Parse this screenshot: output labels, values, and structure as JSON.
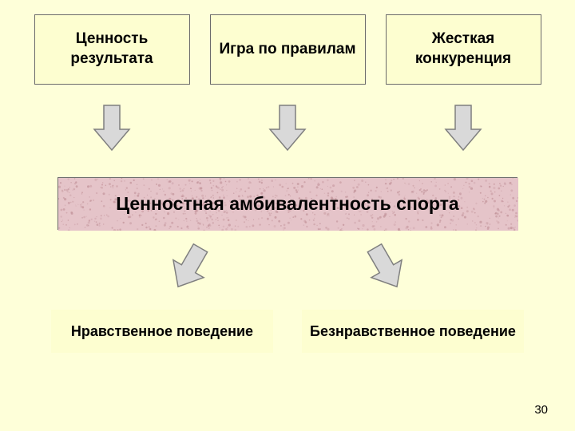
{
  "colors": {
    "slide_bg": "#feffd9",
    "box_bg": "#fdfed0",
    "box_border": "#6b6b6b",
    "center_bg": "#e5c4c9",
    "center_speckle": "#c09097",
    "arrow_fill": "#d9d9d9",
    "arrow_stroke": "#7f7f7f",
    "text": "#000000"
  },
  "fonts": {
    "top_box_size": 19,
    "center_size": 23,
    "bottom_box_size": 18,
    "page_num_size": 15,
    "weight": "bold"
  },
  "top_boxes": [
    {
      "label": "Ценность результата"
    },
    {
      "label": "Игра по правилам"
    },
    {
      "label": "Жесткая конкуренция"
    }
  ],
  "center": {
    "label": "Ценностная амбивалентность спорта"
  },
  "bottom_boxes": [
    {
      "label": "Нравственное поведение"
    },
    {
      "label": "Безнравственное поведение"
    }
  ],
  "page_number": "30",
  "arrows": {
    "down_count": 3,
    "diag_directions": [
      "left",
      "right"
    ]
  }
}
